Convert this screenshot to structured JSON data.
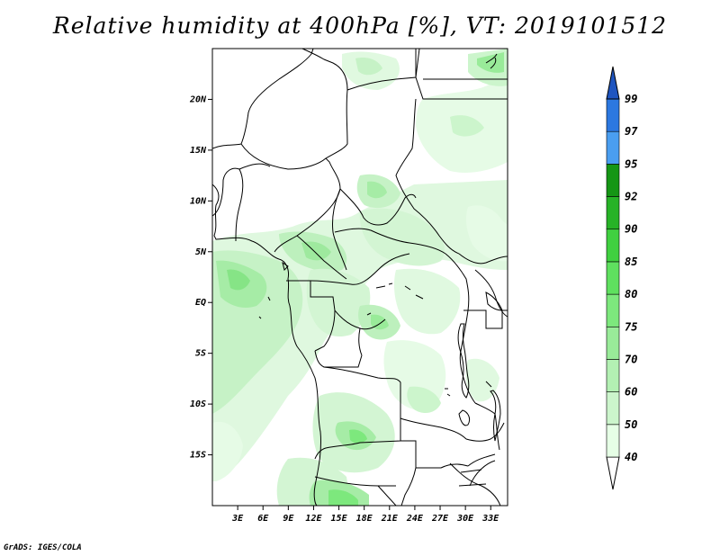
{
  "title": "Relative humidity at 400hPa [%], VT: 2019101512",
  "footer": "GrADS: IGES/COLA",
  "map": {
    "lon_range": [
      0,
      35
    ],
    "lat_range": [
      -20,
      25
    ],
    "lat_ticks": [
      {
        "value": 20,
        "label": "20N"
      },
      {
        "value": 15,
        "label": "15N"
      },
      {
        "value": 10,
        "label": "10N"
      },
      {
        "value": 5,
        "label": "5N"
      },
      {
        "value": 0,
        "label": "EQ"
      },
      {
        "value": -5,
        "label": "5S"
      },
      {
        "value": -10,
        "label": "10S"
      },
      {
        "value": -15,
        "label": "15S"
      }
    ],
    "lon_ticks": [
      {
        "value": 3,
        "label": "3E"
      },
      {
        "value": 6,
        "label": "6E"
      },
      {
        "value": 9,
        "label": "9E"
      },
      {
        "value": 12,
        "label": "12E"
      },
      {
        "value": 15,
        "label": "15E"
      },
      {
        "value": 18,
        "label": "18E"
      },
      {
        "value": 21,
        "label": "21E"
      },
      {
        "value": 24,
        "label": "24E"
      },
      {
        "value": 27,
        "label": "27E"
      },
      {
        "value": 30,
        "label": "30E"
      },
      {
        "value": 33,
        "label": "33E"
      }
    ]
  },
  "colorbar": {
    "levels": [
      {
        "label": "40",
        "color": "#e6ffe6"
      },
      {
        "label": "50",
        "color": "#ccf5cc"
      },
      {
        "label": "60",
        "color": "#b3f0b3"
      },
      {
        "label": "70",
        "color": "#99eb99"
      },
      {
        "label": "75",
        "color": "#7de87d"
      },
      {
        "label": "80",
        "color": "#5fe05f"
      },
      {
        "label": "85",
        "color": "#40d040"
      },
      {
        "label": "90",
        "color": "#27b327"
      },
      {
        "label": "92",
        "color": "#159615"
      },
      {
        "label": "95",
        "color": "#4a9ef0"
      },
      {
        "label": "97",
        "color": "#2c78e0"
      },
      {
        "label": "99",
        "color": "#1e5ccc"
      }
    ],
    "top_color": "#1f55c0",
    "bottom_color": "#ffffff"
  }
}
